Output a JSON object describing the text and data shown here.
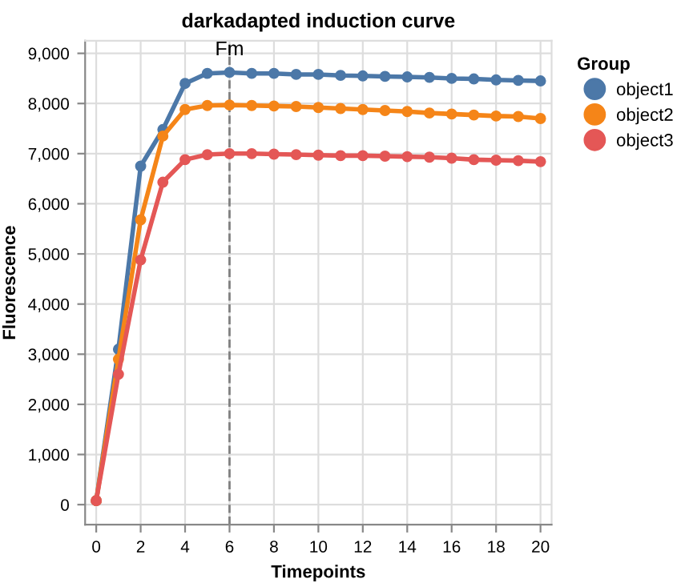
{
  "chart_data": {
    "type": "line",
    "title": "darkadapted induction curve",
    "xlabel": "Timepoints",
    "ylabel": "Fluorescence",
    "legend_title": "Group",
    "x": [
      0,
      1,
      2,
      3,
      4,
      5,
      6,
      7,
      8,
      9,
      10,
      11,
      12,
      13,
      14,
      15,
      16,
      17,
      18,
      19,
      20
    ],
    "series": [
      {
        "name": "object1",
        "color": "#4c78a8",
        "values": [
          80,
          3100,
          6750,
          7480,
          8400,
          8600,
          8620,
          8600,
          8600,
          8580,
          8580,
          8560,
          8550,
          8540,
          8530,
          8520,
          8500,
          8490,
          8470,
          8460,
          8450
        ]
      },
      {
        "name": "object2",
        "color": "#f58518",
        "values": [
          80,
          2900,
          5680,
          7350,
          7880,
          7960,
          7970,
          7960,
          7950,
          7940,
          7920,
          7900,
          7880,
          7860,
          7840,
          7810,
          7790,
          7770,
          7750,
          7740,
          7700
        ]
      },
      {
        "name": "object3",
        "color": "#e45756",
        "values": [
          80,
          2600,
          4880,
          6430,
          6880,
          6980,
          7000,
          7000,
          6990,
          6980,
          6970,
          6960,
          6960,
          6950,
          6940,
          6930,
          6910,
          6880,
          6870,
          6860,
          6840
        ]
      }
    ],
    "xlim": [
      -0.5,
      20.5
    ],
    "ylim": [
      -400,
      9250
    ],
    "xticks": [
      0,
      2,
      4,
      6,
      8,
      10,
      12,
      14,
      16,
      18,
      20
    ],
    "yticks": [
      {
        "value": 0,
        "label": "0"
      },
      {
        "value": 1000,
        "label": "1,000"
      },
      {
        "value": 2000,
        "label": "2,000"
      },
      {
        "value": 3000,
        "label": "3,000"
      },
      {
        "value": 4000,
        "label": "4,000"
      },
      {
        "value": 5000,
        "label": "5,000"
      },
      {
        "value": 6000,
        "label": "6,000"
      },
      {
        "value": 7000,
        "label": "7,000"
      },
      {
        "value": 8000,
        "label": "8,000"
      },
      {
        "value": 9000,
        "label": "9,000"
      }
    ],
    "ref_lines": [
      {
        "axis": "x",
        "value": 6,
        "label": "Fm",
        "color": "#808080",
        "line_style": "dashed"
      }
    ],
    "grid": true,
    "legend": "right",
    "marker": "circle",
    "line_style": "solid"
  }
}
